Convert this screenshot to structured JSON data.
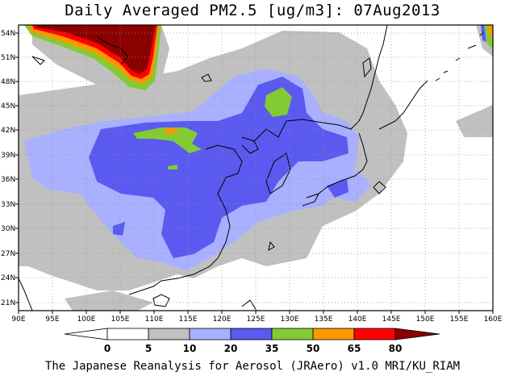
{
  "title": "Daily Averaged PM2.5 [ug/m3]: 07Aug2013",
  "footer": "The Japanese Reanalysis for Aerosol (JRAero) v1.0 MRI/KU_RIAM",
  "lon_labels": [
    "90E",
    "95E",
    "100E",
    "105E",
    "110E",
    "115E",
    "120E",
    "125E",
    "130E",
    "135E",
    "140E",
    "145E",
    "150E",
    "155E",
    "160E"
  ],
  "lat_labels": [
    "54N",
    "51N",
    "48N",
    "45N",
    "42N",
    "39N",
    "36N",
    "33N",
    "30N",
    "27N",
    "24N",
    "21N"
  ],
  "colorbar": {
    "labels": [
      "0",
      "5",
      "10",
      "20",
      "35",
      "50",
      "65",
      "80"
    ],
    "colors": [
      "#ffffff",
      "#ffffff",
      "#c0c0c0",
      "#a8b0ff",
      "#5a5af0",
      "#82cc32",
      "#ff9600",
      "#ff0000",
      "#8b0000"
    ]
  }
}
